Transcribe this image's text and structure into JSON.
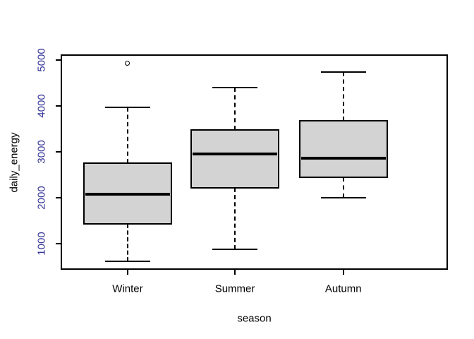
{
  "chart_data": {
    "type": "boxplot",
    "title": "",
    "xlabel": "season",
    "ylabel": "daily_energy",
    "categories": [
      "Winter",
      "Summer",
      "Autumn"
    ],
    "yticks": [
      1000,
      2000,
      3000,
      4000,
      5000
    ],
    "ylim": [
      435,
      5130
    ],
    "grid": false,
    "legend": "none",
    "colors": {
      "box_fill": "#d3d3d3",
      "line": "#000000",
      "axis_label": "#000000",
      "ytick_label": "#333399",
      "background": "#ffffff"
    },
    "boxes": [
      {
        "category": "Winter",
        "whisker_low": 620,
        "q1": 1440,
        "median": 2075,
        "q3": 2760,
        "whisker_high": 3970,
        "outliers": [
          4940
        ]
      },
      {
        "category": "Summer",
        "whisker_low": 880,
        "q1": 2220,
        "median": 2960,
        "q3": 3480,
        "whisker_high": 4400,
        "outliers": []
      },
      {
        "category": "Autumn",
        "whisker_low": 2000,
        "q1": 2450,
        "median": 2860,
        "q3": 3690,
        "whisker_high": 4750,
        "outliers": []
      }
    ]
  }
}
